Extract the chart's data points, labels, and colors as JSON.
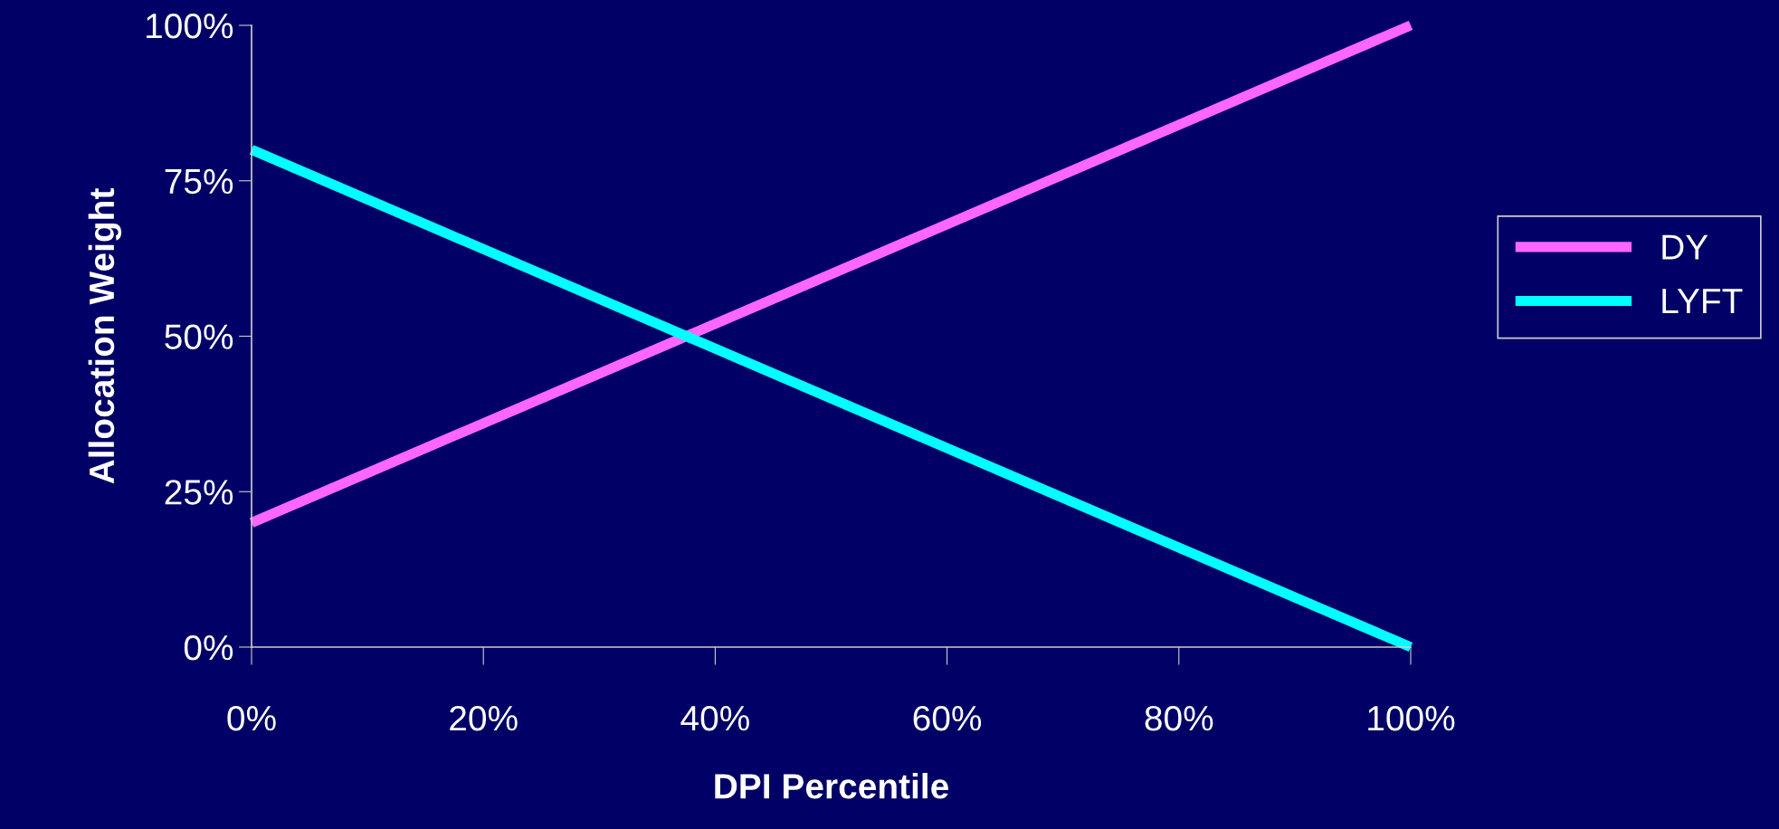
{
  "chart_data": {
    "type": "line",
    "xlabel": "DPI Percentile",
    "ylabel": "Allocation Weight",
    "x": [
      0,
      100
    ],
    "series": [
      {
        "name": "DY",
        "color": "#ff66ff",
        "values": [
          20,
          100
        ]
      },
      {
        "name": "LYFT",
        "color": "#00ffff",
        "values": [
          80,
          0
        ]
      }
    ],
    "xlim": [
      0,
      100
    ],
    "ylim": [
      0,
      100
    ],
    "xticks": [
      {
        "value": 0,
        "label": "0%"
      },
      {
        "value": 20,
        "label": "20%"
      },
      {
        "value": 40,
        "label": "40%"
      },
      {
        "value": 60,
        "label": "60%"
      },
      {
        "value": 80,
        "label": "80%"
      },
      {
        "value": 100,
        "label": "100%"
      }
    ],
    "yticks": [
      {
        "value": 0,
        "label": "0%"
      },
      {
        "value": 25,
        "label": "25%"
      },
      {
        "value": 50,
        "label": "50%"
      },
      {
        "value": 75,
        "label": "75%"
      },
      {
        "value": 100,
        "label": "100%"
      }
    ],
    "grid": false,
    "legend": "right",
    "marker": "none",
    "line_style": "solid"
  }
}
